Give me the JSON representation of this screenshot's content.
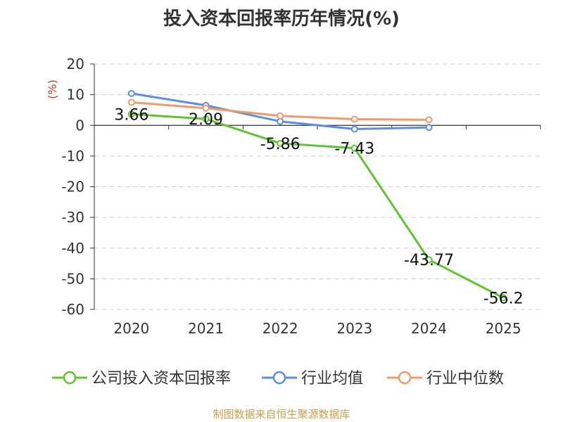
{
  "title": "投入资本回报率历年情况(%)",
  "source": "制图数据来自恒生聚源数据库",
  "chart_data": {
    "type": "line",
    "title": "投入资本回报率历年情况(%)",
    "ylabel": "(%)",
    "xlabel": "",
    "categories": [
      "2020",
      "2021",
      "2022",
      "2023",
      "2024",
      "2025"
    ],
    "ylim": [
      -60,
      20
    ],
    "yticks": [
      20,
      10,
      0,
      -10,
      -20,
      -30,
      -40,
      -50,
      -60
    ],
    "grid": true,
    "legend_position": "bottom",
    "series": [
      {
        "name": "公司投入资本回报率",
        "color": "#5fc430",
        "values": [
          3.66,
          2.09,
          -5.86,
          -7.43,
          -43.77,
          -56.2
        ],
        "labels": [
          "3.66",
          "2.09",
          "-5.86",
          "-7.43",
          "-43.77",
          "-56.2"
        ]
      },
      {
        "name": "行业均值",
        "color": "#5b8ee0",
        "values": [
          10.4,
          6.5,
          1.3,
          -1.2,
          -0.7,
          null
        ]
      },
      {
        "name": "行业中位数",
        "color": "#f39a6b",
        "values": [
          7.5,
          5.6,
          3.1,
          2.0,
          1.8,
          null
        ]
      }
    ]
  }
}
